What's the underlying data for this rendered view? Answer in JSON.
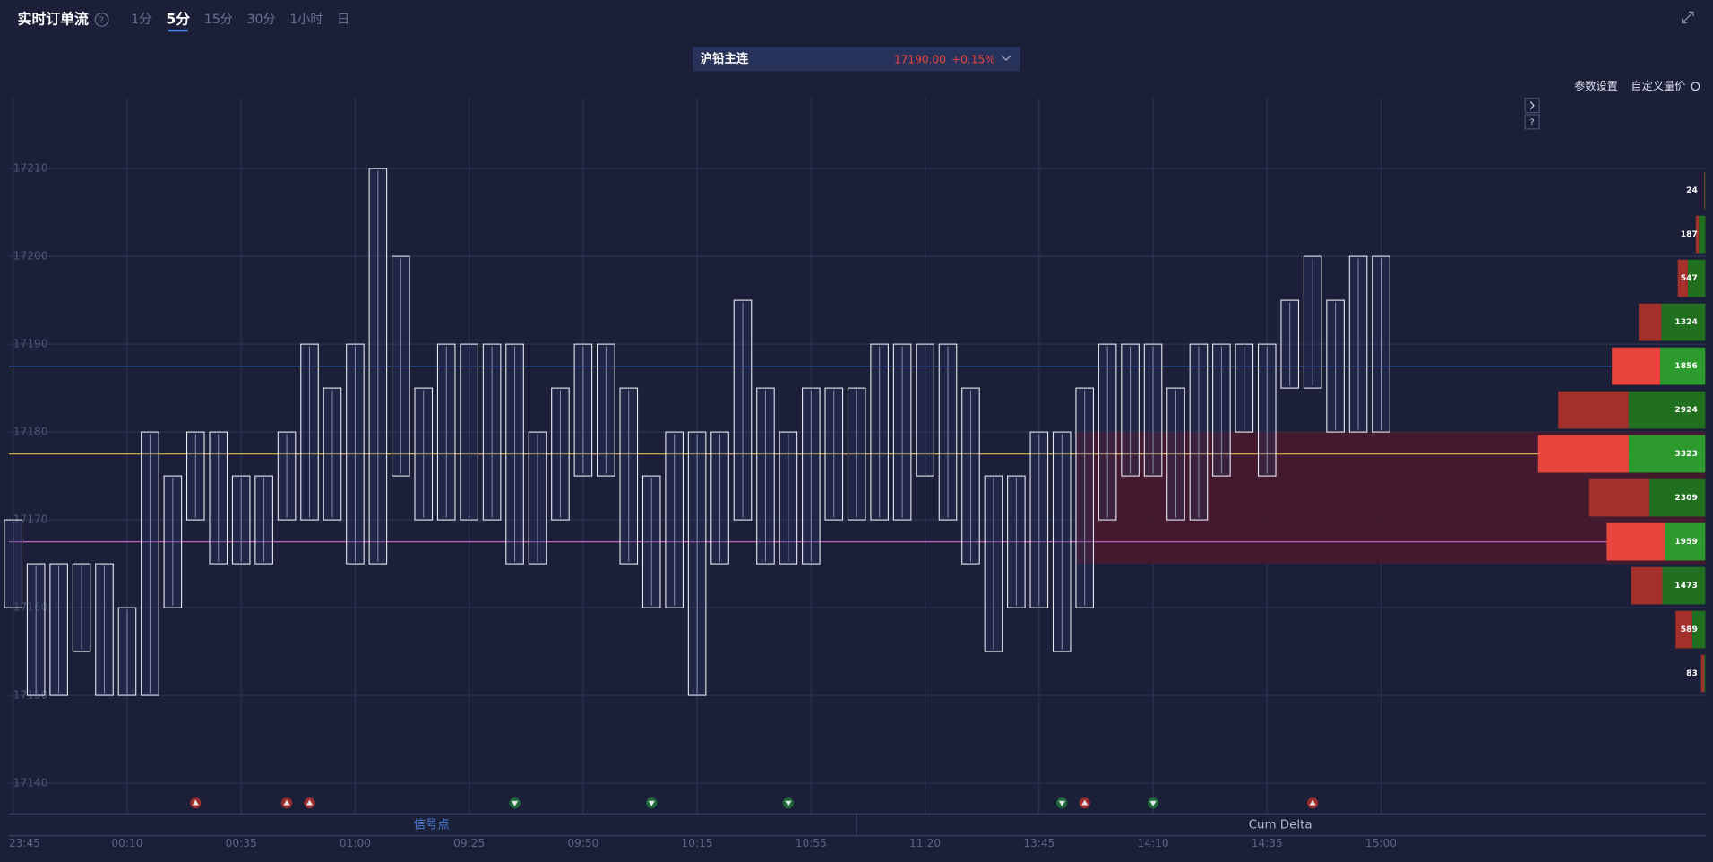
{
  "header": {
    "title": "实时订单流",
    "help": "?",
    "tabs": [
      "1分",
      "5分",
      "15分",
      "30分",
      "1小时",
      "日"
    ],
    "active_tab": 1
  },
  "instrument": {
    "name": "沪铅主连",
    "price": "17190.00",
    "change": "+0.15%"
  },
  "toolbar": {
    "settings": "参数设置",
    "custom": "自定义量价"
  },
  "panels": [
    "信号点",
    "Cum Delta"
  ],
  "chart_data": {
    "type": "footprint",
    "categories": [
      "23:45",
      null,
      null,
      null,
      null,
      "00:10",
      null,
      null,
      null,
      null,
      "00:35",
      null,
      null,
      null,
      null,
      "01:00",
      null,
      null,
      null,
      null,
      "09:25",
      null,
      null,
      null,
      null,
      "09:50",
      null,
      null,
      null,
      null,
      "10:15",
      null,
      null,
      null,
      null,
      "10:55",
      null,
      null,
      null,
      null,
      "11:20",
      null,
      null,
      null,
      null,
      "13:45",
      null,
      null,
      null,
      null,
      "14:10",
      null,
      null,
      null,
      null,
      "14:35",
      null,
      null,
      null,
      null,
      "15:00"
    ],
    "high": [
      17170,
      17165,
      17165,
      17165,
      17165,
      17160,
      17180,
      17175,
      17180,
      17180,
      17175,
      17175,
      17180,
      17190,
      17185,
      17190,
      17210,
      17200,
      17185,
      17190,
      17190,
      17190,
      17190,
      17180,
      17185,
      17190,
      17190,
      17185,
      17175,
      17180,
      17180,
      17180,
      17195,
      17185,
      17180,
      17185,
      17185,
      17185,
      17190,
      17190,
      17190,
      17190,
      17185,
      17175,
      17175,
      17180,
      17180,
      17185,
      17190,
      17190,
      17190,
      17185,
      17190,
      17190,
      17190,
      17190,
      17195,
      17200,
      17195,
      17200,
      17200
    ],
    "low": [
      17160,
      17150,
      17150,
      17155,
      17150,
      17150,
      17150,
      17160,
      17170,
      17165,
      17165,
      17165,
      17170,
      17170,
      17170,
      17165,
      17165,
      17175,
      17170,
      17170,
      17170,
      17170,
      17165,
      17165,
      17170,
      17175,
      17175,
      17165,
      17160,
      17160,
      17150,
      17165,
      17170,
      17165,
      17165,
      17165,
      17170,
      17170,
      17170,
      17170,
      17175,
      17170,
      17165,
      17155,
      17160,
      17160,
      17155,
      17160,
      17170,
      17175,
      17175,
      17170,
      17170,
      17175,
      17180,
      17175,
      17185,
      17185,
      17180,
      17180,
      17180
    ],
    "signals": [
      null,
      null,
      null,
      null,
      null,
      null,
      null,
      null,
      "up",
      null,
      null,
      null,
      "up",
      "up",
      null,
      null,
      null,
      null,
      null,
      null,
      null,
      null,
      "down",
      null,
      null,
      null,
      null,
      null,
      "down",
      null,
      null,
      null,
      null,
      null,
      "down",
      null,
      null,
      null,
      null,
      null,
      null,
      null,
      null,
      null,
      null,
      null,
      "down",
      "up",
      null,
      null,
      "down",
      null,
      null,
      null,
      null,
      null,
      null,
      "up",
      null,
      null,
      null
    ],
    "signal_colors": {
      "up": "#b8302c",
      "down": "#1f7a3c"
    },
    "box_color": "#e8e8f0",
    "ylim": [
      17136.5,
      17218
    ],
    "yticks": [
      17140,
      17150,
      17160,
      17170,
      17180,
      17190,
      17200,
      17210
    ],
    "grid": true,
    "reference_lines": [
      {
        "value": 17187.5,
        "color": "#4a6fd0"
      },
      {
        "value": 17177.5,
        "color": "#d9a84a"
      },
      {
        "value": 17167.5,
        "color": "#c060c0"
      }
    ],
    "value_area": {
      "from": 17165,
      "to": 17180,
      "start": 47,
      "color": "#4a1a2c"
    },
    "profile": {
      "levels": [
        17205,
        17200,
        17195,
        17190,
        17185,
        17180,
        17175,
        17170,
        17165,
        17160,
        17155,
        17150
      ],
      "height": 5,
      "totals": [
        24,
        187,
        547,
        1324,
        1856,
        2924,
        3323,
        2309,
        1959,
        1473,
        589,
        83
      ],
      "sell": [
        12,
        60,
        200,
        450,
        960,
        1400,
        1800,
        1200,
        1150,
        620,
        330,
        60
      ],
      "buy": [
        12,
        127,
        347,
        874,
        896,
        1524,
        1523,
        1109,
        809,
        853,
        259,
        23
      ],
      "highlight": [
        false,
        false,
        false,
        false,
        true,
        false,
        true,
        false,
        true,
        false,
        false,
        false
      ],
      "colors": {
        "sell": "#a3302b",
        "buy": "#20701f",
        "sell_hi": "#e8453c",
        "buy_hi": "#2c9a2c"
      }
    }
  }
}
